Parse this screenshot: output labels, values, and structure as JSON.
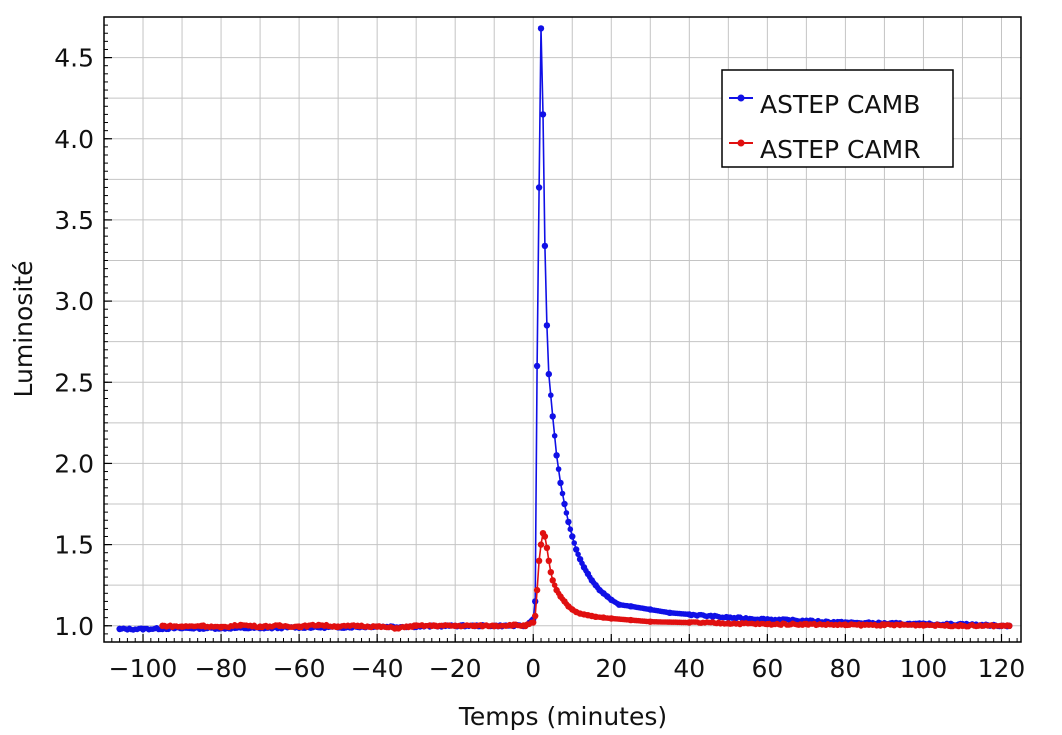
{
  "chart_data": {
    "type": "line",
    "title": "",
    "xlabel": "Temps (minutes)",
    "ylabel": "Luminosité",
    "xlim": [
      -110,
      125
    ],
    "ylim": [
      0.9,
      4.75
    ],
    "xticks": [
      -100,
      -80,
      -60,
      -40,
      -20,
      0,
      20,
      40,
      60,
      80,
      100,
      120
    ],
    "xtick_labels": [
      "−100",
      "−80",
      "−60",
      "−40",
      "−20",
      "0",
      "20",
      "40",
      "60",
      "80",
      "100",
      "120"
    ],
    "yticks": [
      1.0,
      1.5,
      2.0,
      2.5,
      3.0,
      3.5,
      4.0,
      4.5
    ],
    "ytick_labels": [
      "1.0",
      "1.5",
      "2.0",
      "2.5",
      "3.0",
      "3.5",
      "4.0",
      "4.5"
    ],
    "grid": true,
    "legend_position": "top-right",
    "series": [
      {
        "name": "ASTEP CAMB",
        "color": "#1010e6",
        "x": [
          -106,
          -100,
          -90,
          -80,
          -70,
          -60,
          -50,
          -40,
          -30,
          -20,
          -10,
          -5,
          -2,
          0,
          0.5,
          1,
          1.5,
          2,
          2.5,
          3,
          3.5,
          4,
          5,
          6,
          7,
          8,
          9,
          10,
          11,
          12,
          13,
          14,
          15,
          16,
          17,
          18,
          19,
          20,
          22,
          25,
          30,
          35,
          40,
          50,
          60,
          70,
          80,
          90,
          100,
          110,
          120,
          122
        ],
        "values": [
          0.98,
          0.98,
          0.985,
          0.985,
          0.985,
          0.99,
          0.99,
          0.995,
          0.995,
          1.0,
          1.0,
          1.0,
          1.0,
          1.04,
          1.15,
          2.6,
          3.7,
          4.68,
          4.15,
          3.34,
          2.85,
          2.55,
          2.29,
          2.05,
          1.88,
          1.75,
          1.64,
          1.55,
          1.47,
          1.41,
          1.36,
          1.32,
          1.28,
          1.25,
          1.22,
          1.2,
          1.18,
          1.16,
          1.13,
          1.12,
          1.1,
          1.08,
          1.07,
          1.05,
          1.04,
          1.03,
          1.02,
          1.015,
          1.01,
          1.01,
          1.0,
          1.0
        ]
      },
      {
        "name": "ASTEP CAMR",
        "color": "#e01010",
        "x": [
          -95,
          -90,
          -85,
          -80,
          -75,
          -70,
          -65,
          -60,
          -55,
          -50,
          -45,
          -40,
          -35,
          -30,
          -25,
          -20,
          -15,
          -10,
          -5,
          -2,
          0,
          0.5,
          1,
          1.5,
          2,
          2.5,
          3,
          3.5,
          4,
          4.5,
          5,
          6,
          7,
          8,
          9,
          10,
          11,
          12,
          13,
          14,
          15,
          16,
          18,
          20,
          25,
          30,
          40,
          50,
          60,
          70,
          80,
          90,
          100,
          110,
          120,
          122
        ],
        "values": [
          1.0,
          0.995,
          1.0,
          0.99,
          1.005,
          0.995,
          1.0,
          0.995,
          1.005,
          0.995,
          1.0,
          0.995,
          0.985,
          1.0,
          1.0,
          1.0,
          1.0,
          1.0,
          1.005,
          1.0,
          1.02,
          1.06,
          1.22,
          1.4,
          1.5,
          1.57,
          1.55,
          1.48,
          1.4,
          1.33,
          1.28,
          1.22,
          1.18,
          1.15,
          1.12,
          1.1,
          1.085,
          1.075,
          1.07,
          1.065,
          1.06,
          1.055,
          1.05,
          1.045,
          1.035,
          1.025,
          1.02,
          1.015,
          1.01,
          1.01,
          1.005,
          1.005,
          1.005,
          1.0,
          1.0,
          1.0
        ]
      }
    ]
  }
}
